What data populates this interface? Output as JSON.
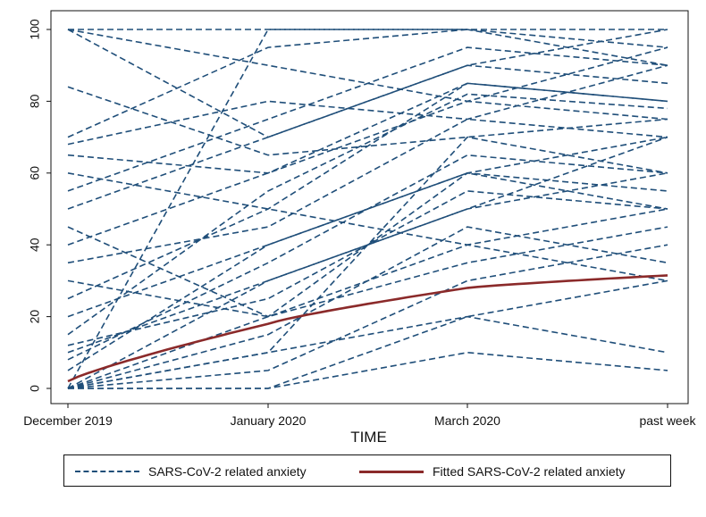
{
  "chart_data": {
    "type": "line",
    "title": "",
    "xlabel": "TIME",
    "ylabel": "",
    "categories": [
      "December 2019",
      "January 2020",
      "March 2020",
      "past week"
    ],
    "ylim": [
      0,
      100
    ],
    "yticks": [
      0,
      20,
      40,
      60,
      80,
      100
    ],
    "grid": false,
    "legend_position": "bottom",
    "legend": {
      "entries": [
        "SARS-CoV-2 related anxiety",
        "Fitted SARS-CoV-2 related anxiety"
      ]
    },
    "colors": {
      "individual": "#1f4e79",
      "fitted": "#8b2a2a"
    },
    "series": [
      {
        "name": "SARS-CoV-2 related anxiety",
        "style": "dashed",
        "values": [
          [
            0,
            10,
            20,
            10
          ],
          [
            0,
            30,
            50,
            70
          ],
          [
            5,
            40,
            60,
            50
          ],
          [
            100,
            100,
            100,
            100
          ],
          [
            100,
            90,
            80,
            95
          ],
          [
            68,
            80,
            75,
            90
          ],
          [
            70,
            95,
            100,
            95
          ],
          [
            65,
            60,
            85,
            80
          ],
          [
            60,
            50,
            40,
            30
          ],
          [
            50,
            70,
            90,
            85
          ],
          [
            40,
            60,
            80,
            75
          ],
          [
            20,
            40,
            60,
            70
          ],
          [
            10,
            30,
            50,
            60
          ],
          [
            30,
            20,
            40,
            50
          ],
          [
            0,
            5,
            30,
            40
          ],
          [
            0,
            10,
            70,
            60
          ],
          [
            0,
            100,
            100,
            90
          ],
          [
            84,
            65,
            70,
            75
          ],
          [
            45,
            20,
            60,
            55
          ],
          [
            25,
            50,
            85,
            80
          ],
          [
            0,
            0,
            20,
            30
          ],
          [
            0,
            15,
            45,
            35
          ],
          [
            12,
            25,
            55,
            50
          ],
          [
            8,
            35,
            65,
            60
          ],
          [
            0,
            0,
            10,
            5
          ],
          [
            100,
            70,
            90,
            100
          ],
          [
            55,
            75,
            95,
            90
          ],
          [
            35,
            45,
            75,
            70
          ],
          [
            0,
            20,
            35,
            45
          ],
          [
            15,
            55,
            82,
            78
          ]
        ]
      },
      {
        "name": "Fitted SARS-CoV-2 related anxiety",
        "style": "solid",
        "values": [
          2,
          18,
          28,
          31.5
        ]
      }
    ]
  }
}
